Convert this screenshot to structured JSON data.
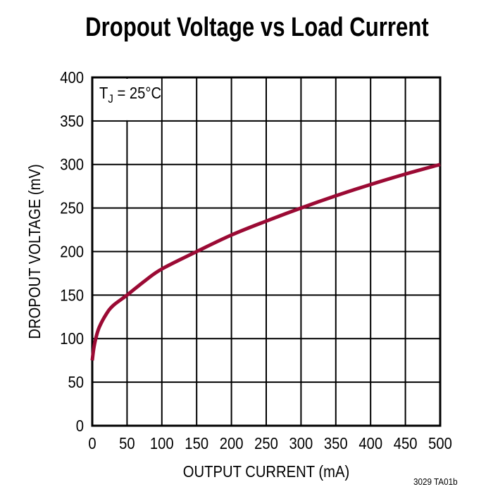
{
  "chart_data": {
    "type": "line",
    "title": "Dropout Voltage vs Load Current",
    "xlabel": "OUTPUT CURRENT (mA)",
    "ylabel": "DROPOUT VOLTAGE (mV)",
    "xlim": [
      0,
      500
    ],
    "ylim": [
      0,
      400
    ],
    "xticks": [
      0,
      50,
      100,
      150,
      200,
      250,
      300,
      350,
      400,
      450,
      500
    ],
    "yticks": [
      0,
      50,
      100,
      150,
      200,
      250,
      300,
      350,
      400
    ],
    "grid": true,
    "annotation": "TJ = 25°C",
    "series": [
      {
        "name": "Dropout Voltage",
        "color": "#9b0a34",
        "x": [
          0,
          2,
          5,
          10,
          20,
          30,
          50,
          75,
          100,
          150,
          200,
          250,
          300,
          350,
          400,
          450,
          500
        ],
        "y": [
          75,
          88,
          100,
          113,
          128,
          138,
          150,
          166,
          180,
          200,
          219,
          235,
          250,
          264,
          277,
          289,
          300
        ]
      }
    ]
  },
  "labels": {
    "title": "Dropout Voltage vs Load Current",
    "xlabel": "OUTPUT CURRENT (mA)",
    "ylabel": "DROPOUT VOLTAGE (mV)",
    "annotation_main": "T",
    "annotation_sub": "J",
    "annotation_rest": " = 25°C",
    "figure_id": "3029 TA01b"
  }
}
